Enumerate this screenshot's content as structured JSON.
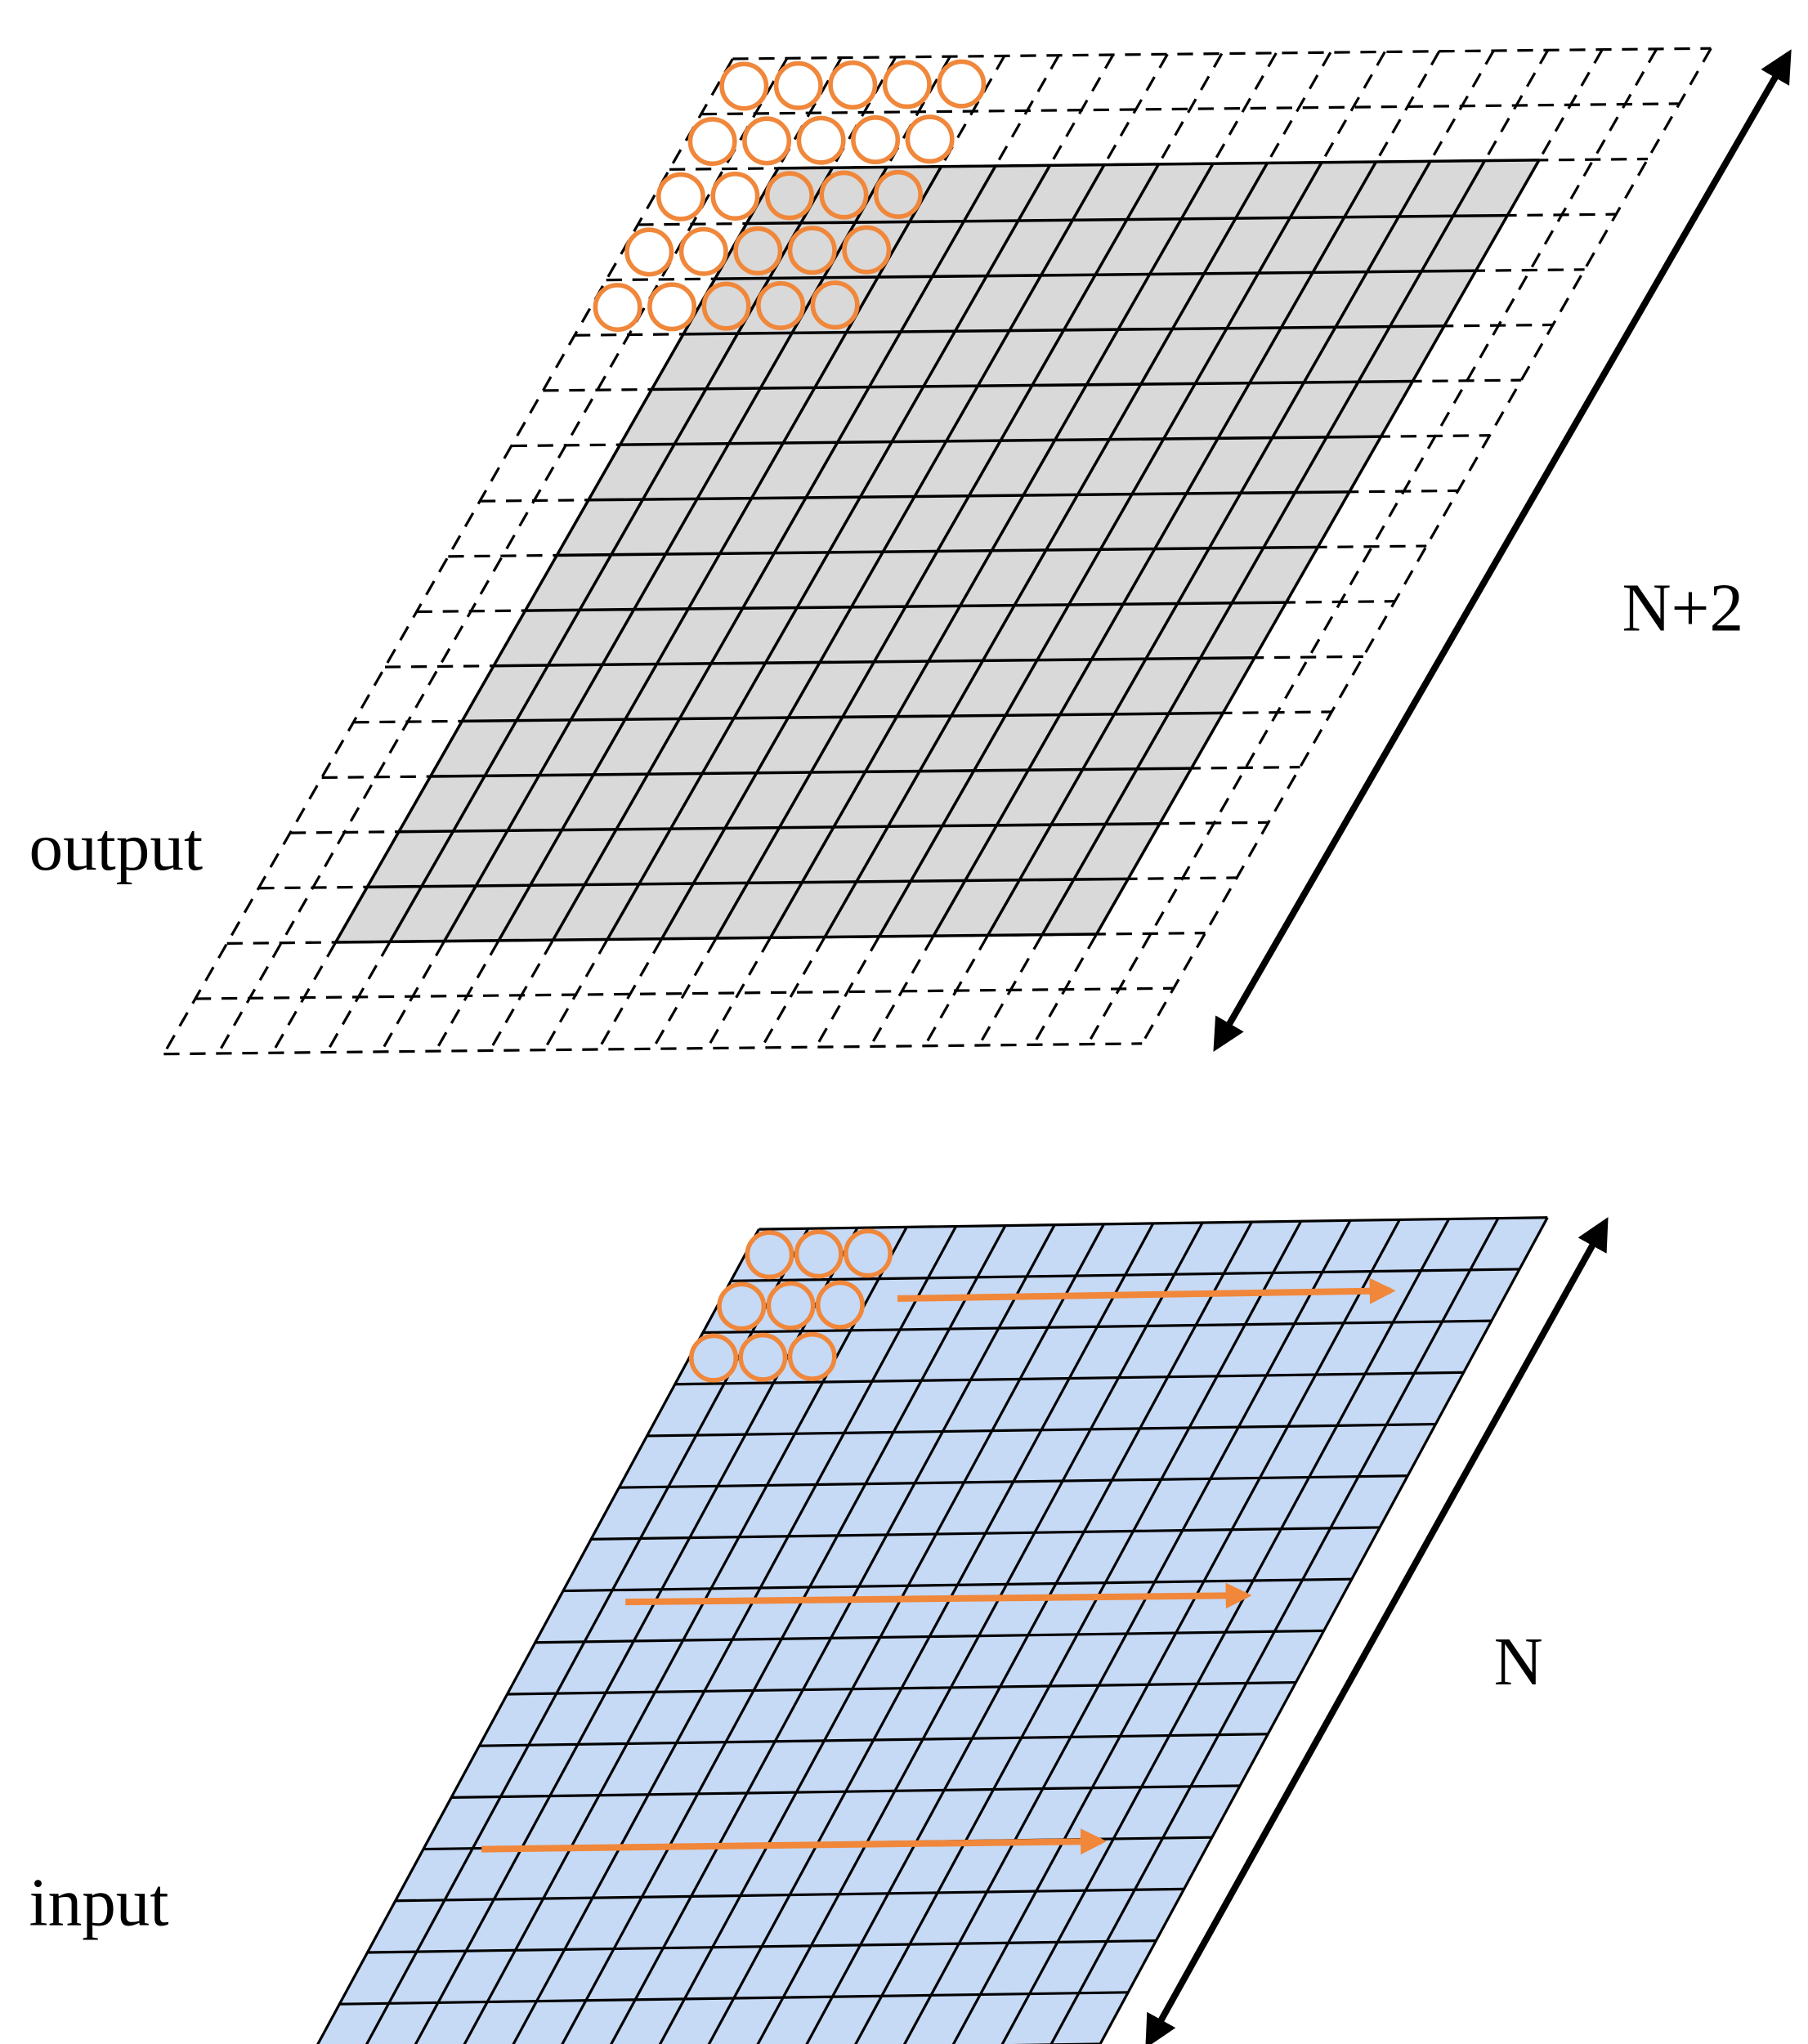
{
  "output_grid": {
    "label": "output",
    "size_label": "N+2"
  },
  "input_grid": {
    "label": "input",
    "size_label": "N"
  }
}
